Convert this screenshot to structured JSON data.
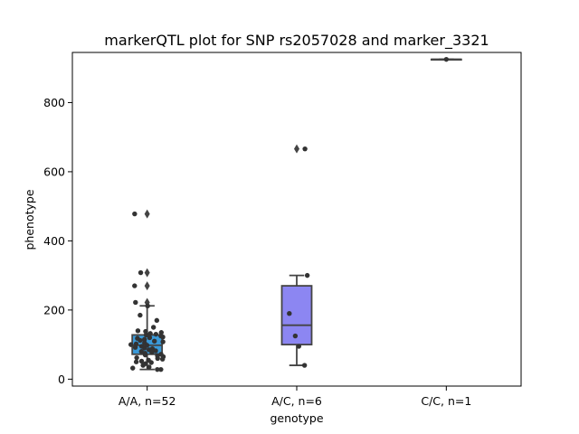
{
  "chart_data": {
    "type": "box",
    "title": "markerQTL plot for SNP rs2057028 and marker_3321",
    "xlabel": "genotype",
    "ylabel": "phenotype",
    "ylim": [
      -20,
      945
    ],
    "yticks": [
      0,
      200,
      400,
      600,
      800
    ],
    "categories": [
      "A/A, n=52",
      "A/C, n=6",
      "C/C, n=1"
    ],
    "colors": [
      "#3a9ad9",
      "#8c86f2",
      "#f08a82"
    ],
    "boxes": [
      {
        "q1": 72,
        "median": 98,
        "q3": 128,
        "whisker_low": 28,
        "whisker_high": 212,
        "outliers": [
          222,
          270,
          308,
          478
        ]
      },
      {
        "q1": 100,
        "median": 156,
        "q3": 270,
        "whisker_low": 40,
        "whisker_high": 300,
        "outliers": [
          666
        ]
      },
      {
        "q1": 925,
        "median": 925,
        "q3": 925,
        "whisker_low": 925,
        "whisker_high": 925,
        "outliers": []
      }
    ],
    "points": [
      {
        "cat": 0,
        "values": [
          28,
          32,
          35,
          40,
          45,
          48,
          50,
          52,
          55,
          58,
          60,
          62,
          65,
          68,
          70,
          72,
          75,
          78,
          80,
          82,
          85,
          88,
          90,
          92,
          95,
          98,
          100,
          102,
          105,
          108,
          110,
          112,
          115,
          118,
          120,
          122,
          125,
          128,
          130,
          132,
          135,
          138,
          140,
          150,
          170,
          185,
          212,
          222,
          270,
          308,
          478,
          28
        ]
      },
      {
        "cat": 1,
        "values": [
          40,
          95,
          125,
          190,
          300,
          666
        ]
      },
      {
        "cat": 2,
        "values": [
          925
        ]
      }
    ]
  }
}
